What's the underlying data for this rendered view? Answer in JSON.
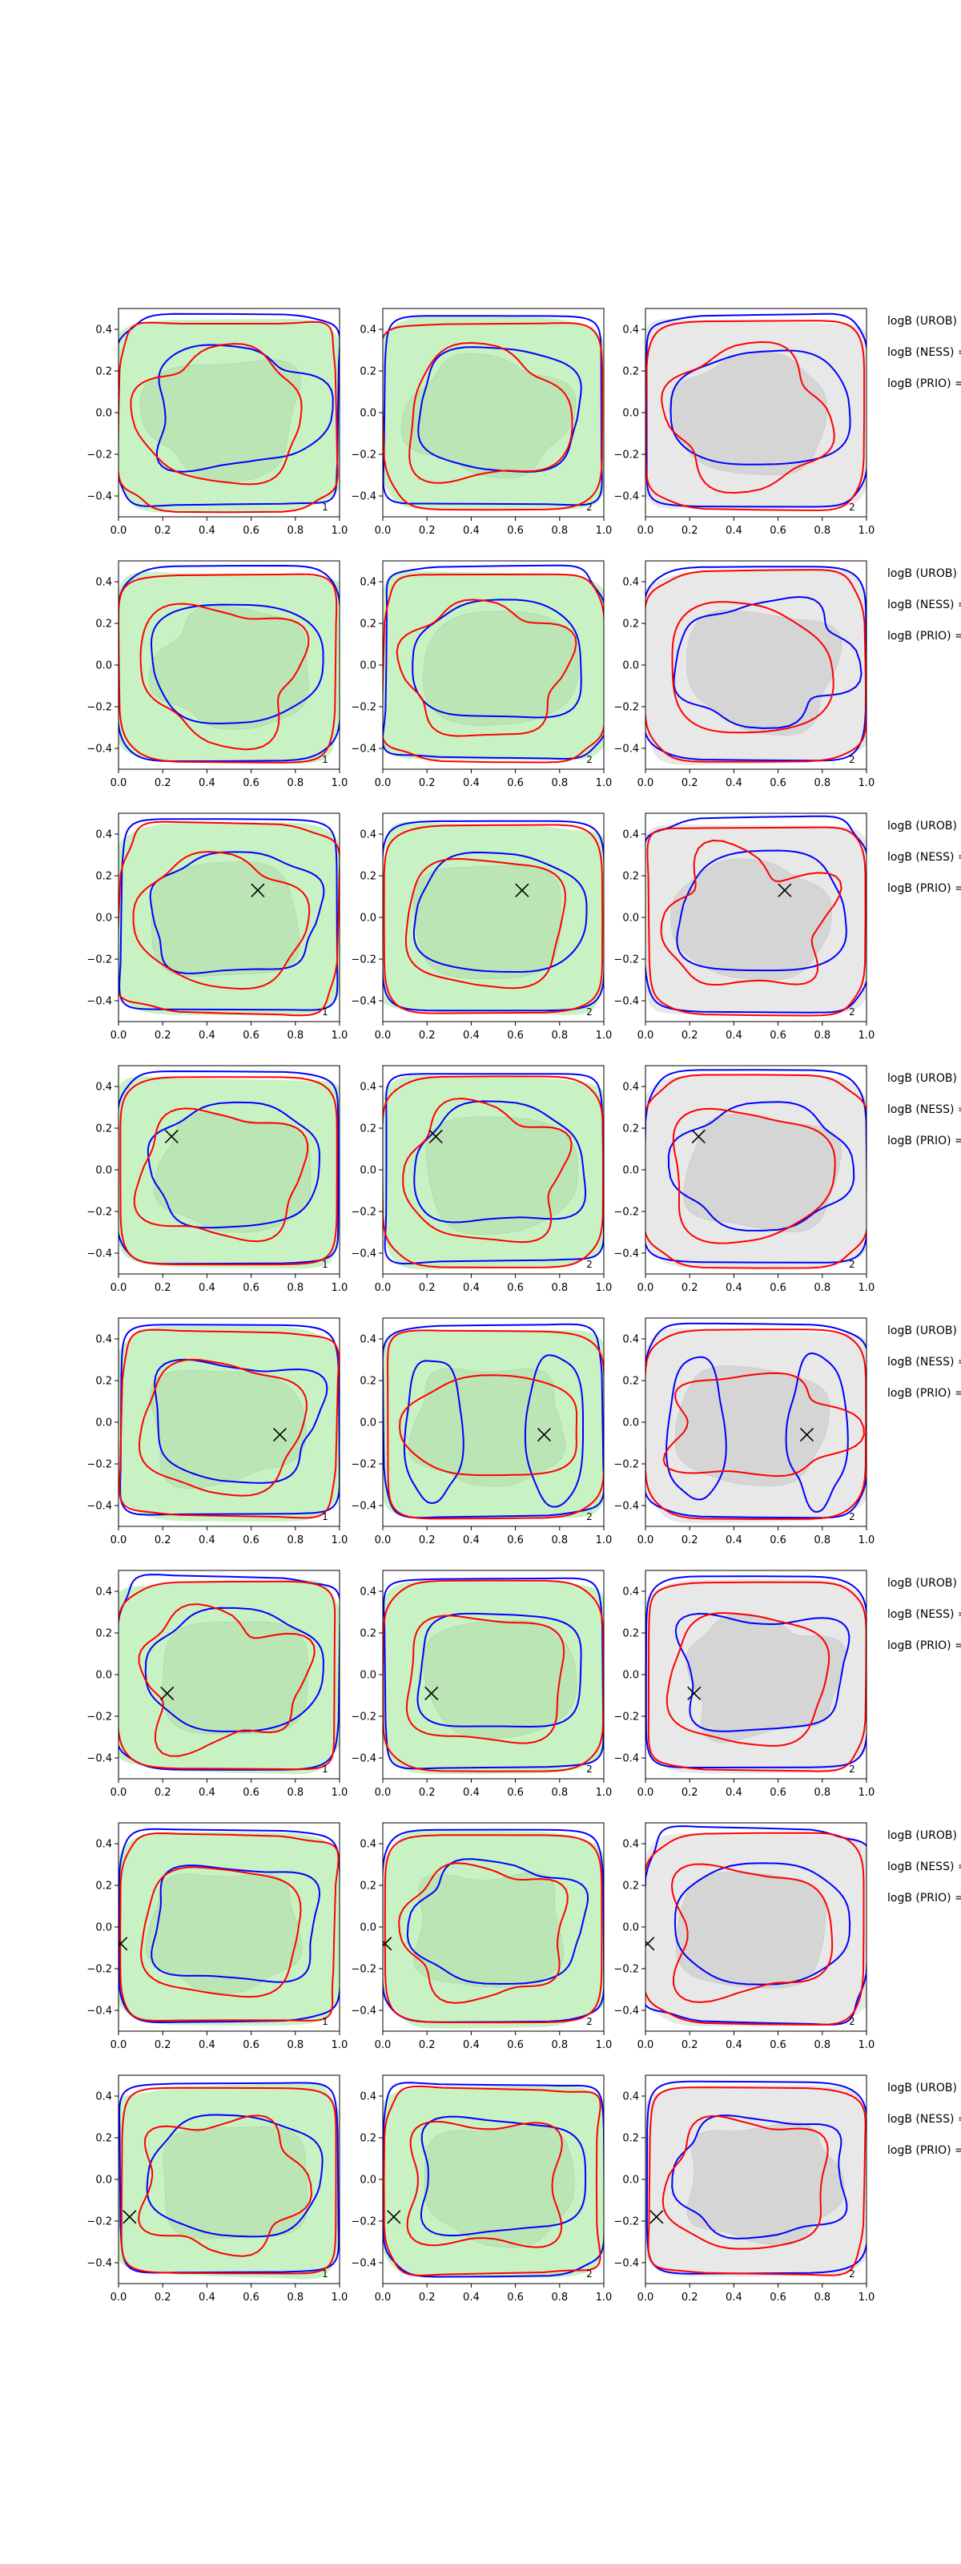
{
  "figure": {
    "row_count": 8,
    "col_count": 3,
    "colors": {
      "shade_green": "#c9f2c4",
      "shade_green_inner": "#b9e3b4",
      "shade_grey": "#e8e8e8",
      "shade_grey_inner": "#d3d3d3",
      "contour_red": "#ff0000",
      "contour_blue": "#0000ff",
      "axes": "#000000",
      "marker": "#000000"
    },
    "annotations": [
      "logB (UROB) =",
      "logB (NESS) =",
      "logB (PRIO) ="
    ],
    "panel_labels": [
      "1",
      "2",
      "2"
    ]
  },
  "chart_data": [
    {
      "row": 1,
      "type": "contour",
      "x_ticks": [
        "0.0",
        "0.2",
        "0.4",
        "0.6",
        "0.8",
        "1.0"
      ],
      "y_ticks": [
        "0.4",
        "0.2",
        "0.0",
        "−0.2",
        "−0.4"
      ],
      "xlim": [
        0,
        1
      ],
      "ylim": [
        -0.5,
        0.5
      ],
      "marker": null
    },
    {
      "row": 2,
      "type": "contour",
      "x_ticks": [
        "0.0",
        "0.2",
        "0.4",
        "0.6",
        "0.8",
        "1.0"
      ],
      "y_ticks": [
        "0.4",
        "0.2",
        "0.0",
        "−0.2",
        "−0.4"
      ],
      "xlim": [
        0,
        1
      ],
      "ylim": [
        -0.5,
        0.5
      ],
      "marker": null
    },
    {
      "row": 3,
      "type": "contour",
      "x_ticks": [
        "0.0",
        "0.2",
        "0.4",
        "0.6",
        "0.8",
        "1.0"
      ],
      "y_ticks": [
        "0.4",
        "0.2",
        "0.0",
        "−0.2",
        "−0.4"
      ],
      "xlim": [
        0,
        1
      ],
      "ylim": [
        -0.5,
        0.5
      ],
      "marker": [
        0.63,
        0.13
      ]
    },
    {
      "row": 4,
      "type": "contour",
      "x_ticks": [
        "0.0",
        "0.2",
        "0.4",
        "0.6",
        "0.8",
        "1.0"
      ],
      "y_ticks": [
        "0.4",
        "0.2",
        "0.0",
        "−0.2",
        "−0.4"
      ],
      "xlim": [
        0,
        1
      ],
      "ylim": [
        -0.5,
        0.5
      ],
      "marker": [
        0.24,
        0.16
      ]
    },
    {
      "row": 5,
      "type": "contour",
      "x_ticks": [
        "0.0",
        "0.2",
        "0.4",
        "0.6",
        "0.8",
        "1.0"
      ],
      "y_ticks": [
        "0.4",
        "0.2",
        "0.0",
        "−0.2",
        "−0.4"
      ],
      "xlim": [
        0,
        1
      ],
      "ylim": [
        -0.5,
        0.5
      ],
      "marker": [
        0.73,
        -0.06
      ]
    },
    {
      "row": 6,
      "type": "contour",
      "x_ticks": [
        "0.0",
        "0.2",
        "0.4",
        "0.6",
        "0.8",
        "1.0"
      ],
      "y_ticks": [
        "0.4",
        "0.2",
        "0.0",
        "−0.2",
        "−0.4"
      ],
      "xlim": [
        0,
        1
      ],
      "ylim": [
        -0.5,
        0.5
      ],
      "marker": [
        0.22,
        -0.09
      ]
    },
    {
      "row": 7,
      "type": "contour",
      "x_ticks": [
        "0.0",
        "0.2",
        "0.4",
        "0.6",
        "0.8",
        "1.0"
      ],
      "y_ticks": [
        "0.4",
        "0.2",
        "0.0",
        "−0.2",
        "−0.4"
      ],
      "xlim": [
        0,
        1
      ],
      "ylim": [
        -0.5,
        0.5
      ],
      "marker": [
        0.01,
        -0.08
      ]
    },
    {
      "row": 8,
      "type": "contour",
      "x_ticks": [
        "0.0",
        "0.2",
        "0.4",
        "0.6",
        "0.8",
        "1.0"
      ],
      "y_ticks": [
        "0.4",
        "0.2",
        "0.0",
        "−0.2",
        "−0.4"
      ],
      "xlim": [
        0,
        1
      ],
      "ylim": [
        -0.5,
        0.5
      ],
      "marker": [
        0.05,
        -0.18
      ]
    }
  ]
}
